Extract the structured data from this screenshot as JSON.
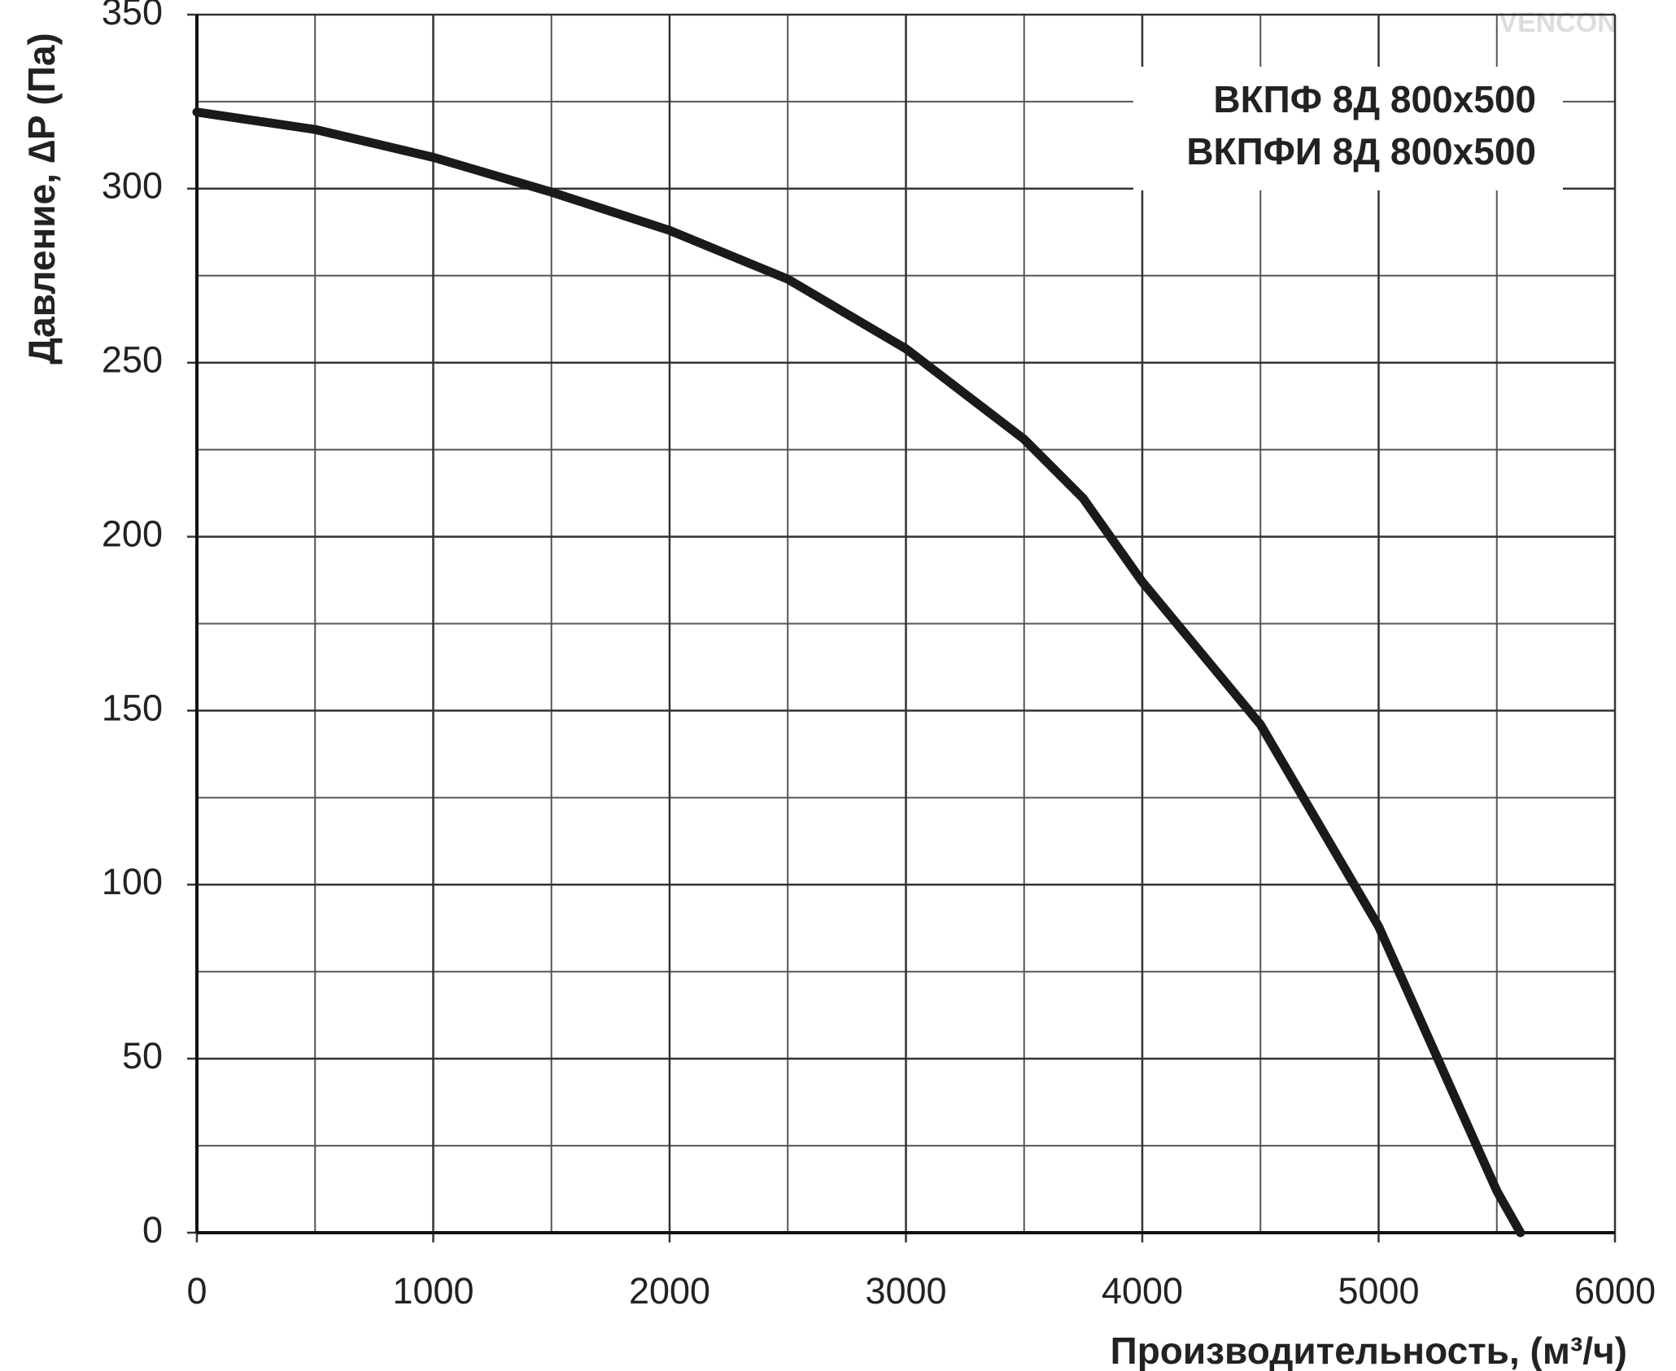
{
  "chart_data": {
    "type": "line",
    "title_lines": [
      "ВКПФ 8Д 800х500",
      "ВКПФИ 8Д 800х500"
    ],
    "watermark": "VENCON",
    "x_label": "Производительность, (м³/ч)",
    "y_label": "Давление, ∆P (Па)",
    "x": [
      0,
      500,
      1000,
      1500,
      2000,
      2500,
      3000,
      3500,
      3750,
      4000,
      4500,
      5000,
      5250,
      5500,
      5600
    ],
    "series": [
      {
        "color": "#1a1a1a",
        "values": [
          322,
          317,
          309,
          299,
          288,
          274,
          254,
          228,
          211,
          187,
          146,
          88,
          50,
          12,
          0
        ]
      }
    ],
    "xlim": [
      0,
      6000
    ],
    "xticks": [
      0,
      1000,
      2000,
      3000,
      4000,
      5000,
      6000
    ],
    "ylim": [
      0,
      350
    ],
    "yticks": [
      0,
      50,
      100,
      150,
      200,
      250,
      300,
      350
    ],
    "grid": true,
    "minor_grid_step_x": 500,
    "minor_grid_step_y": 25
  }
}
